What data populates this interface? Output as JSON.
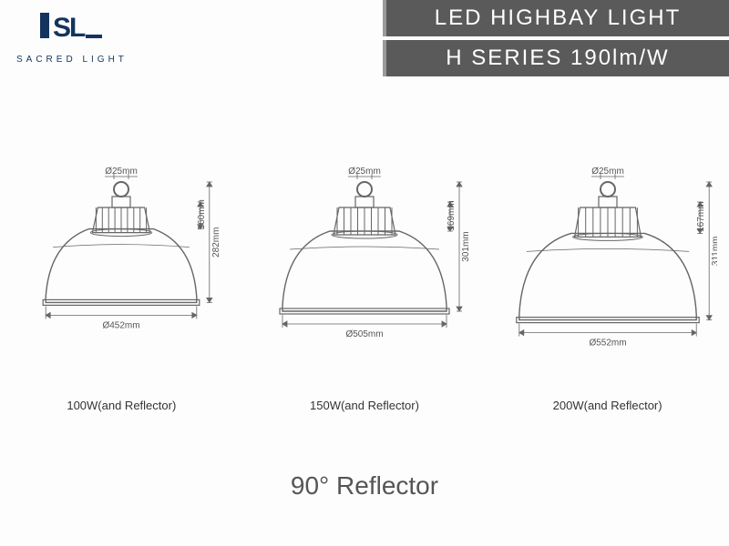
{
  "brand": {
    "name": "SACRED LIGHT",
    "mark": "SL"
  },
  "header": {
    "line1": "LED HIGHBAY LIGHT",
    "line2": "H SERIES 190lm/W"
  },
  "bottom_title": "90° Reflector",
  "units_common": {
    "ring_diameter": "Ø25mm",
    "stroke_color": "#666",
    "dim_color": "#555"
  },
  "units": [
    {
      "caption": "100W(and Reflector)",
      "width_label": "Ø452mm",
      "upper_height": "160mm",
      "total_height": "282mm",
      "svg_scale": 0.92
    },
    {
      "caption": "150W(and Reflector)",
      "width_label": "Ø505mm",
      "upper_height": "169mm",
      "total_height": "301mm",
      "svg_scale": 1.0
    },
    {
      "caption": "200W(and Reflector)",
      "width_label": "Ø552mm",
      "upper_height": "167mm",
      "total_height": "311mm",
      "svg_scale": 1.08
    }
  ]
}
